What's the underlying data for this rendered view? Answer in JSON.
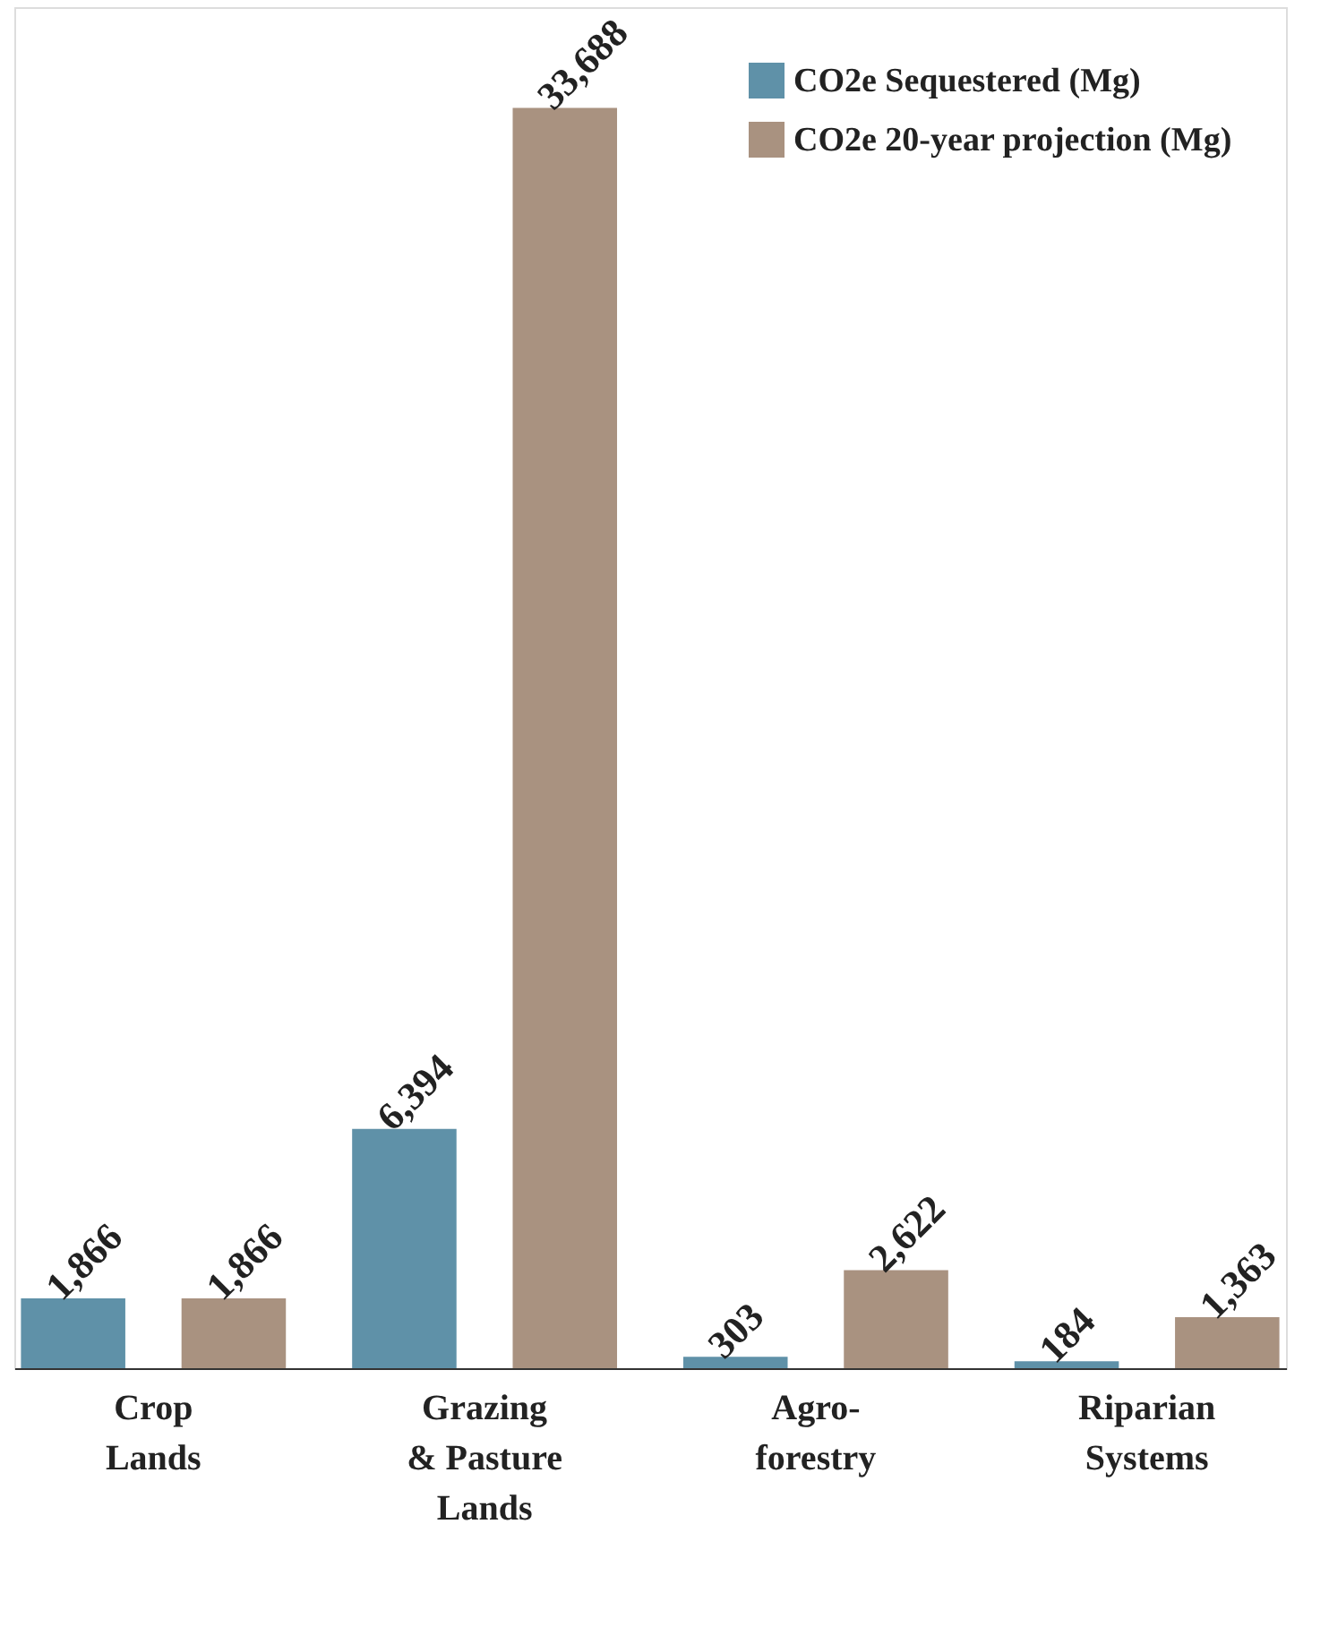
{
  "chart_data": {
    "type": "bar",
    "categories": [
      "Crop\nLands",
      "Grazing\n& Pasture\nLands",
      "Agro-\nforestry",
      "Riparian\nSystems"
    ],
    "series": [
      {
        "name": "CO2e Sequestered (Mg)",
        "color": "#5f91a8",
        "values": [
          1866,
          6394,
          303,
          184
        ],
        "value_labels": [
          "1,866",
          "6,394",
          "303",
          "184"
        ]
      },
      {
        "name": "CO2e 20-year projection (Mg)",
        "color": "#a99280",
        "values": [
          1866,
          33688,
          2622,
          1363
        ],
        "value_labels": [
          "1,866",
          "33,688",
          "2,622",
          "1,363"
        ]
      }
    ],
    "legend": "top right",
    "grid": false
  }
}
